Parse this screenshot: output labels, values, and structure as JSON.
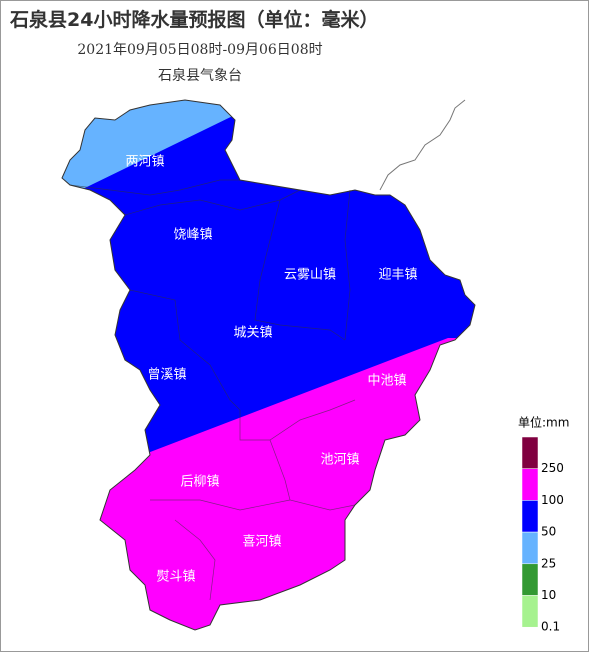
{
  "header": {
    "title": "石泉县24小时降水量预报图（单位：毫米）",
    "subtitle": "2021年09月05日08时-09月06日08时",
    "agency": "石泉县气象台"
  },
  "towns": [
    "两河镇",
    "饶峰镇",
    "云雾山镇",
    "迎丰镇",
    "城关镇",
    "曾溪镇",
    "中池镇",
    "池河镇",
    "后柳镇",
    "喜河镇",
    "熨斗镇"
  ],
  "legend": {
    "title": "单位:mm",
    "colors": [
      "#800040",
      "#ff00ff",
      "#0000ff",
      "#66b3ff",
      "#339933",
      "#a6f28f"
    ],
    "labels": [
      "250",
      "100",
      "50",
      "25",
      "10",
      "0.1"
    ]
  }
}
